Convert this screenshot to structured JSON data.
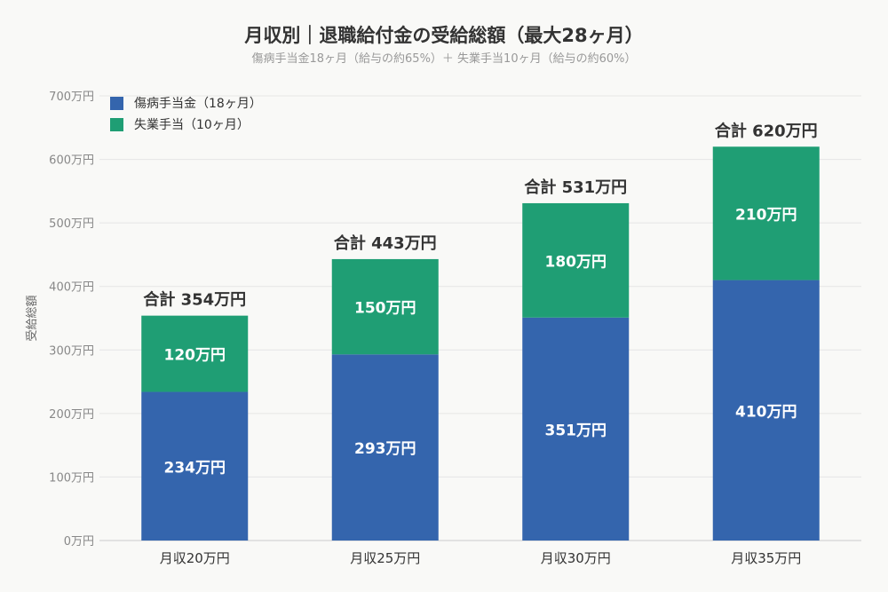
{
  "chart_data": {
    "type": "bar",
    "stacked": true,
    "title": "月収別｜退職給付金の受給総額（最大28ヶ月）",
    "subtitle": "傷病手当金18ヶ月（給与の約65%）＋ 失業手当10ヶ月（給与の約60%）",
    "ylabel": "受給総額",
    "xlabel": "",
    "ylim": [
      0,
      700
    ],
    "yticks": [
      0,
      100,
      200,
      300,
      400,
      500,
      600,
      700
    ],
    "ytick_unit": "万円",
    "grid": true,
    "legend_position": "top-left",
    "categories": [
      "月収20万円",
      "月収25万円",
      "月収30万円",
      "月収35万円"
    ],
    "series": [
      {
        "name": "傷病手当金（18ヶ月）",
        "color": "#3465ad",
        "values": [
          234,
          293,
          351,
          410
        ]
      },
      {
        "name": "失業手当（10ヶ月）",
        "color": "#1f9e74",
        "values": [
          120,
          150,
          180,
          210
        ]
      }
    ],
    "totals": [
      354,
      443,
      531,
      620
    ],
    "total_prefix": "合計 ",
    "value_unit": "万円"
  }
}
